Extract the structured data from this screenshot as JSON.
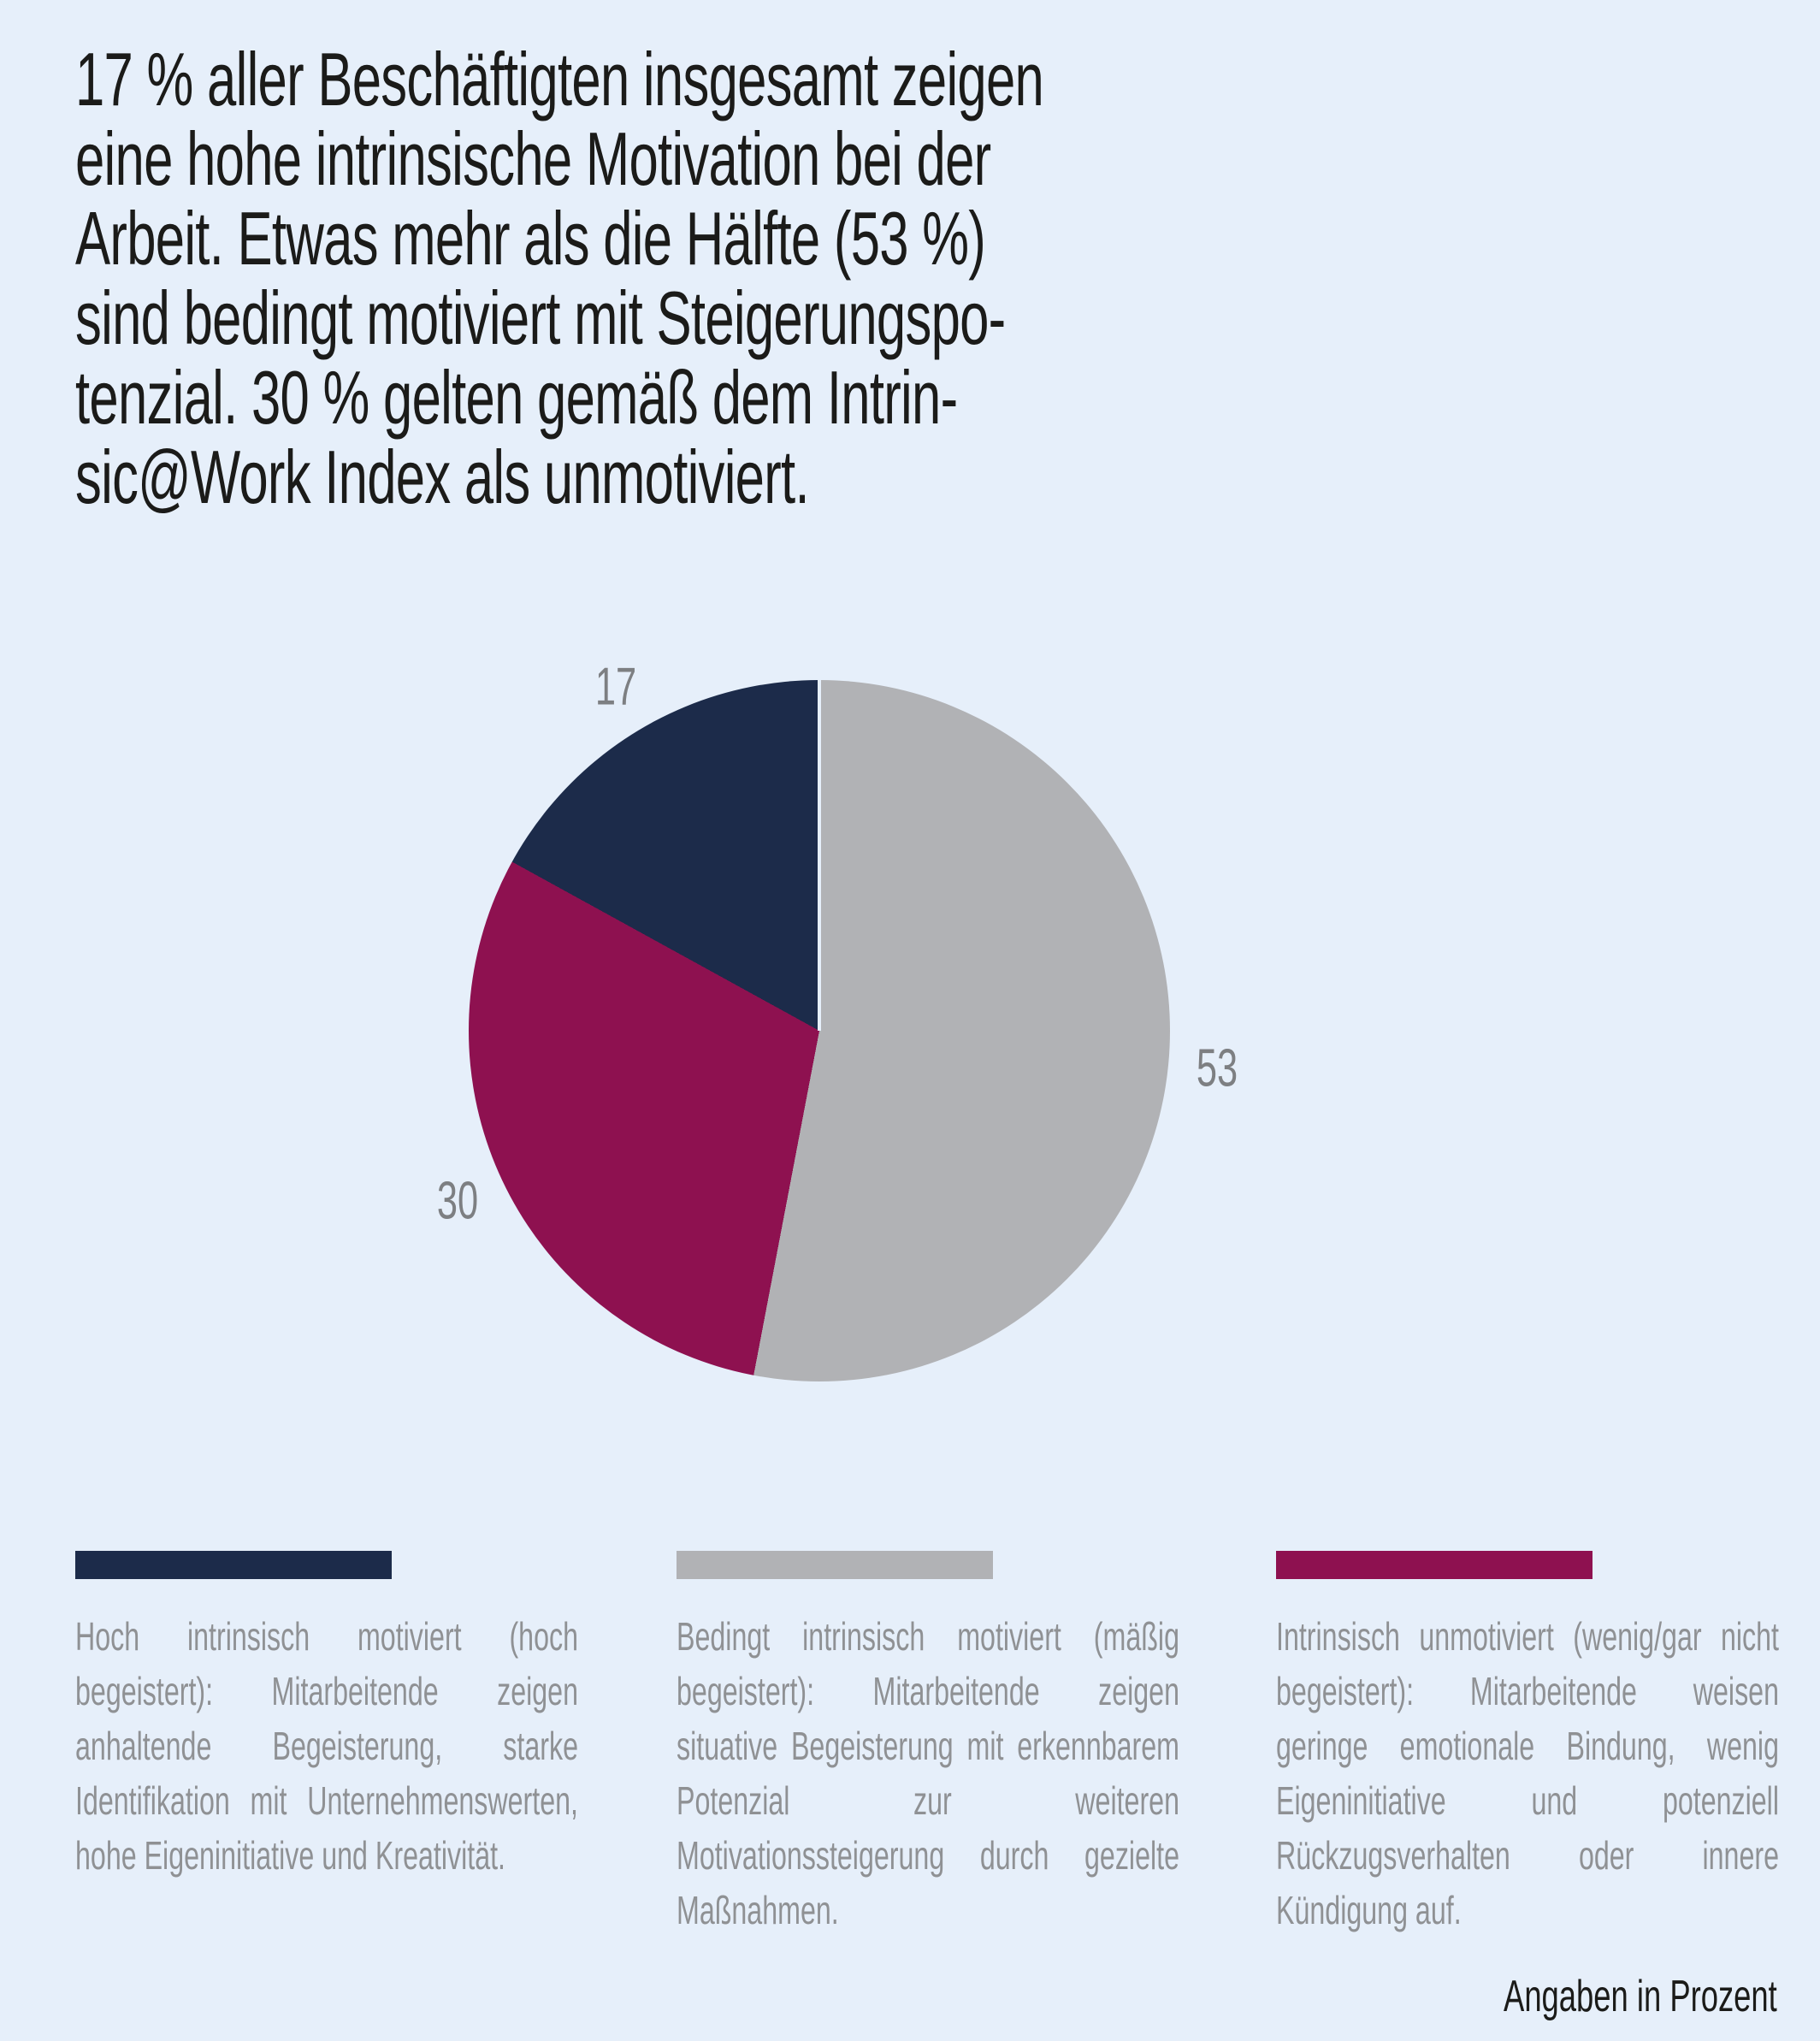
{
  "title": "17 % aller Beschäftigten insgesamt zeigen\neine hohe intrinsische Motivation bei der\nArbeit. Etwas mehr als die Hälfte (53 %)\nsind bedingt motiviert mit Steigerungspo-\ntenzial. 30 % gelten gemäß dem Intrin-\nsic@Work Index als unmotiviert.",
  "chart_data": {
    "type": "pie",
    "unit": "Prozent",
    "total": 100,
    "direction": "clockwise",
    "start_angle_deg": 0,
    "slices": [
      {
        "label": "Bedingt intrinsisch motiviert (mäßig begeistert)",
        "value": 53,
        "color": "#b1b2b5"
      },
      {
        "label": "Intrinsisch unmotiviert (wenig/gar nicht begeistert)",
        "value": 30,
        "color": "#8e1150"
      },
      {
        "label": "Hoch intrinsisch motiviert (hoch begeistert)",
        "value": 17,
        "color": "#1c2b4a"
      }
    ],
    "value_label_color": "#7d7f82",
    "legend_position": "bottom",
    "note": "Angaben in Prozent"
  },
  "legend": {
    "items": [
      {
        "color": "#1c2b4a",
        "text": "Hoch intrinsisch motiviert (hoch begeistert): Mitarbeitende zeigen anhaltende Begeisterung, starke Identifikation mit Unternehmenswerten, hohe Eigeninitiative und Kreativität."
      },
      {
        "color": "#b1b2b5",
        "text": "Bedingt intrinsisch motiviert (mäßig begeistert): Mitarbeitende zeigen situative Begeisterung mit erkennbarem Potenzial zur weiteren Motivationssteigerung durch gezielte Maßnahmen."
      },
      {
        "color": "#8e1150",
        "text": "Intrinsisch unmotiviert (wenig/gar nicht begeistert): Mitarbeitende weisen geringe emotionale Bindung, wenig Eigeninitiative und potenziell Rückzugsverhalten oder innere Kündigung auf."
      }
    ]
  },
  "footer": {
    "note": "Angaben in Prozent"
  },
  "colors": {
    "background": "#e6effa",
    "headline_text": "#1b1b19",
    "legend_text": "#8f9194"
  }
}
